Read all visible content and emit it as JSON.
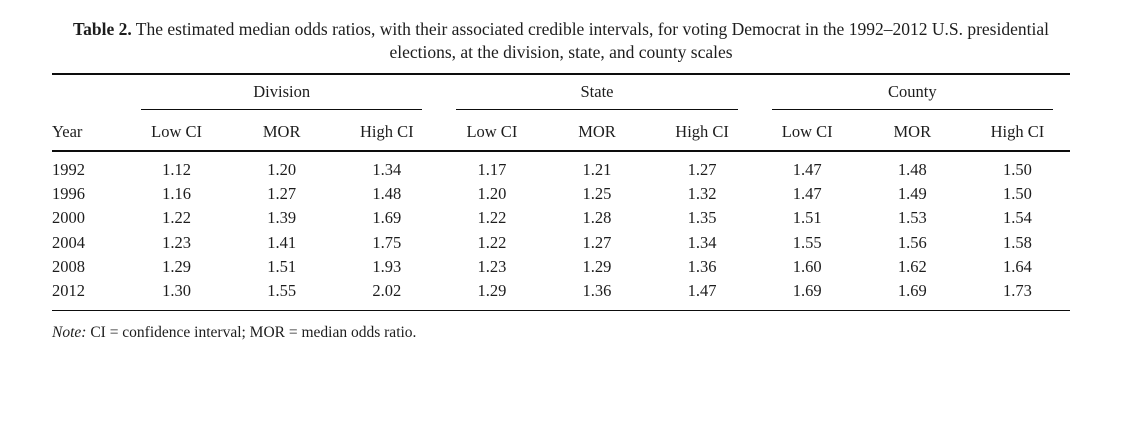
{
  "caption": {
    "label": "Table 2.",
    "text": "The estimated median odds ratios, with their associated credible intervals, for voting Democrat in the 1992–2012 U.S. presidential elections, at the division, state, and county scales"
  },
  "table": {
    "groups": [
      "Division",
      "State",
      "County"
    ],
    "col_headers": {
      "year": "Year",
      "sub": [
        "Low CI",
        "MOR",
        "High CI"
      ]
    },
    "rows": [
      {
        "year": "1992",
        "division": [
          "1.12",
          "1.20",
          "1.34"
        ],
        "state": [
          "1.17",
          "1.21",
          "1.27"
        ],
        "county": [
          "1.47",
          "1.48",
          "1.50"
        ]
      },
      {
        "year": "1996",
        "division": [
          "1.16",
          "1.27",
          "1.48"
        ],
        "state": [
          "1.20",
          "1.25",
          "1.32"
        ],
        "county": [
          "1.47",
          "1.49",
          "1.50"
        ]
      },
      {
        "year": "2000",
        "division": [
          "1.22",
          "1.39",
          "1.69"
        ],
        "state": [
          "1.22",
          "1.28",
          "1.35"
        ],
        "county": [
          "1.51",
          "1.53",
          "1.54"
        ]
      },
      {
        "year": "2004",
        "division": [
          "1.23",
          "1.41",
          "1.75"
        ],
        "state": [
          "1.22",
          "1.27",
          "1.34"
        ],
        "county": [
          "1.55",
          "1.56",
          "1.58"
        ]
      },
      {
        "year": "2008",
        "division": [
          "1.29",
          "1.51",
          "1.93"
        ],
        "state": [
          "1.23",
          "1.29",
          "1.36"
        ],
        "county": [
          "1.60",
          "1.62",
          "1.64"
        ]
      },
      {
        "year": "2012",
        "division": [
          "1.30",
          "1.55",
          "2.02"
        ],
        "state": [
          "1.29",
          "1.36",
          "1.47"
        ],
        "county": [
          "1.69",
          "1.69",
          "1.73"
        ]
      }
    ]
  },
  "note": {
    "label": "Note:",
    "text": "CI = confidence interval; MOR = median odds ratio."
  }
}
